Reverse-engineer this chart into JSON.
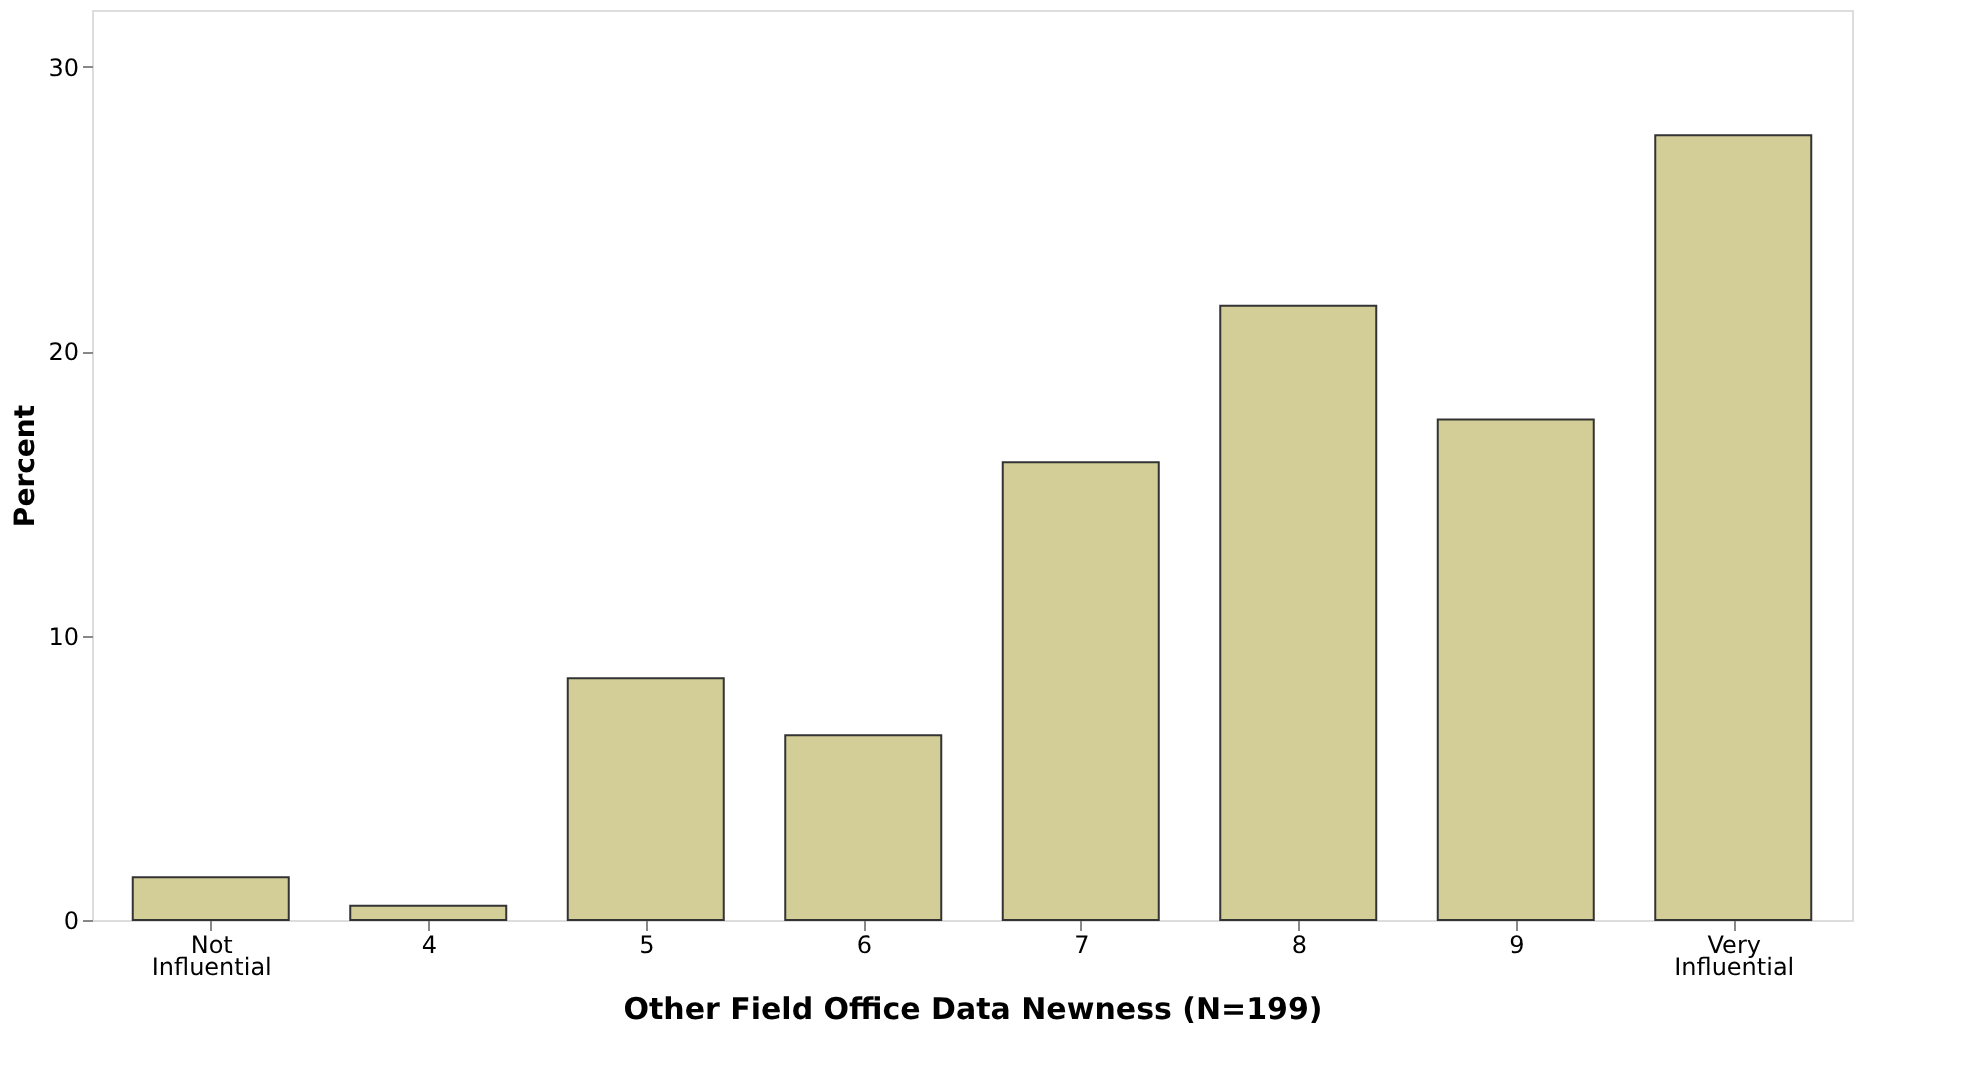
{
  "chart_data": {
    "type": "bar",
    "xlabel": "Other Field Office Data Newness (N=199)",
    "ylabel": "Percent",
    "categories": [
      "Not Influential",
      "4",
      "5",
      "6",
      "7",
      "8",
      "9",
      "Very Influential"
    ],
    "values": [
      1.5,
      0.5,
      8.5,
      6.5,
      16.1,
      21.6,
      17.6,
      27.6
    ],
    "color": "#d3ce97",
    "ylim": [
      0,
      32
    ],
    "yticks": [
      0,
      10,
      20,
      30
    ],
    "grid": false
  }
}
